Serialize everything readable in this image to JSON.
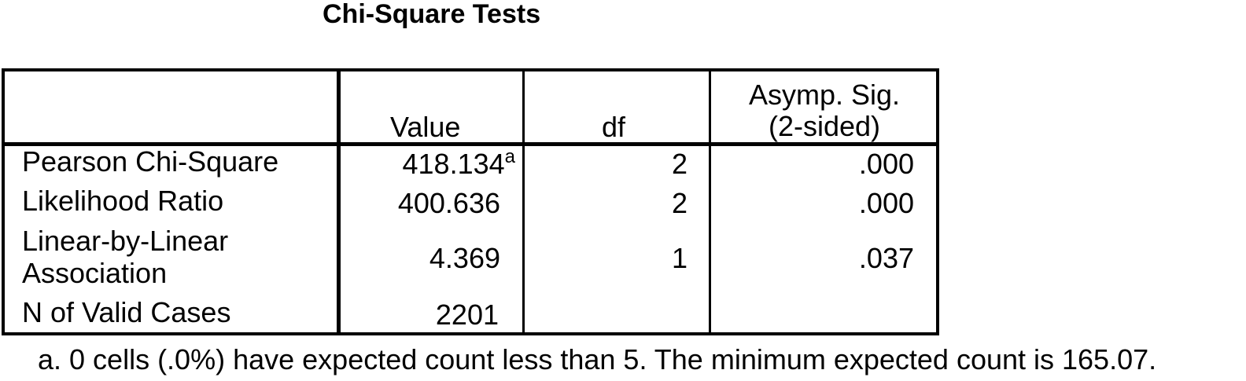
{
  "table": {
    "title": "Chi-Square Tests",
    "columns": {
      "value": "Value",
      "df": "df",
      "sig_line1": "Asymp. Sig.",
      "sig_line2": "(2-sided)"
    },
    "rows": [
      {
        "label_line1": "Pearson Chi-Square",
        "label_line2": "",
        "value": "418.134",
        "value_note": "a",
        "df": "2",
        "sig": ".000"
      },
      {
        "label_line1": "Likelihood Ratio",
        "label_line2": "",
        "value": "400.636",
        "value_note": "",
        "df": "2",
        "sig": ".000"
      },
      {
        "label_line1": "Linear-by-Linear",
        "label_line2": "Association",
        "value": "4.369",
        "value_note": "",
        "df": "1",
        "sig": ".037"
      },
      {
        "label_line1": "N of Valid Cases",
        "label_line2": "",
        "value": "2201",
        "value_note": "",
        "df": "",
        "sig": ""
      }
    ],
    "footnote": "a. 0 cells (.0%) have expected count less than 5. The minimum expected count is 165.07."
  }
}
